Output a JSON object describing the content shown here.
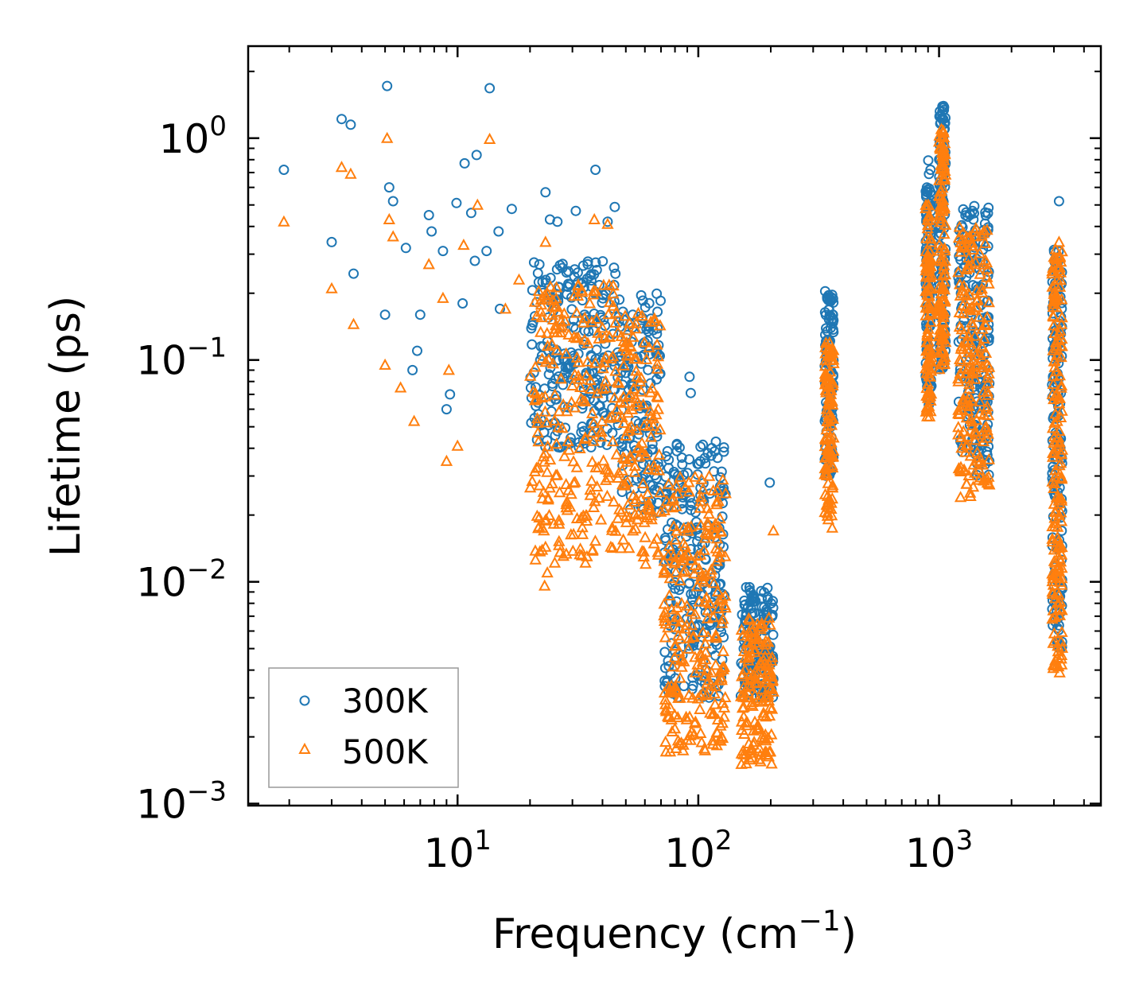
{
  "chart_data": {
    "type": "scatter",
    "title": "",
    "xlabel": "Frequency (cm",
    "xlabel_sup": "−1",
    "xlabel_close": ")",
    "ylabel": "Lifetime (ps)",
    "xscale": "log",
    "yscale": "log",
    "xlim": [
      1.35,
      4700
    ],
    "ylim": [
      0.00098,
      2.6
    ],
    "x_ticks": [
      {
        "value": 10,
        "base": "10",
        "exp": "1"
      },
      {
        "value": 100,
        "base": "10",
        "exp": "2"
      },
      {
        "value": 1000,
        "base": "10",
        "exp": "3"
      }
    ],
    "y_ticks": [
      {
        "value": 0.001,
        "base": "10",
        "exp": "−3"
      },
      {
        "value": 0.01,
        "base": "10",
        "exp": "−2"
      },
      {
        "value": 0.1,
        "base": "10",
        "exp": "−1"
      },
      {
        "value": 1,
        "base": "10",
        "exp": "0"
      }
    ],
    "legend_position": "bottom-left",
    "series": [
      {
        "name": "300K",
        "marker": "circle",
        "color": "#1f77b4"
      },
      {
        "name": "500K",
        "marker": "triangle",
        "color": "#ff7f0e"
      }
    ],
    "clusters": [
      {
        "x": [
          20,
          48
        ],
        "y300": [
          0.04,
          0.28
        ],
        "y500": [
          0.012,
          0.22
        ],
        "n": 260
      },
      {
        "x": [
          48,
          70
        ],
        "y300": [
          0.02,
          0.2
        ],
        "y500": [
          0.012,
          0.17
        ],
        "n": 130
      },
      {
        "x": [
          72,
          130
        ],
        "y300": [
          0.003,
          0.045
        ],
        "y500": [
          0.0017,
          0.03
        ],
        "n": 260
      },
      {
        "x": [
          150,
          205
        ],
        "y300": [
          0.003,
          0.0095
        ],
        "y500": [
          0.0015,
          0.007
        ],
        "n": 150
      },
      {
        "x": [
          335,
          365
        ],
        "y300": [
          0.03,
          0.21
        ],
        "y500": [
          0.019,
          0.12
        ],
        "n": 110
      },
      {
        "x": [
          880,
          930
        ],
        "y300": [
          0.06,
          0.8
        ],
        "y500": [
          0.055,
          0.5
        ],
        "n": 110
      },
      {
        "x": [
          1000,
          1065
        ],
        "y300": [
          0.09,
          1.4
        ],
        "y500": [
          0.09,
          1.1
        ],
        "n": 130
      },
      {
        "x": [
          1200,
          1620
        ],
        "y300": [
          0.03,
          0.5
        ],
        "y500": [
          0.024,
          0.4
        ],
        "n": 200
      },
      {
        "x": [
          2950,
          3250
        ],
        "y300": [
          0.005,
          0.32
        ],
        "y500": [
          0.004,
          0.33
        ],
        "n": 180
      }
    ],
    "points_300K": [
      [
        1.9,
        0.72
      ],
      [
        3.0,
        0.34
      ],
      [
        3.3,
        1.22
      ],
      [
        3.6,
        1.15
      ],
      [
        3.7,
        0.245
      ],
      [
        5.0,
        0.16
      ],
      [
        5.1,
        1.72
      ],
      [
        5.2,
        0.6
      ],
      [
        5.4,
        0.52
      ],
      [
        6.1,
        0.32
      ],
      [
        6.5,
        0.09
      ],
      [
        7.6,
        0.45
      ],
      [
        7.8,
        0.38
      ],
      [
        8.7,
        0.31
      ],
      [
        9.3,
        0.07
      ],
      [
        9.9,
        0.51
      ],
      [
        10.7,
        0.77
      ],
      [
        11.4,
        0.46
      ],
      [
        12.0,
        0.84
      ],
      [
        13.6,
        1.68
      ],
      [
        13.2,
        0.31
      ],
      [
        14.8,
        0.38
      ],
      [
        16.8,
        0.48
      ],
      [
        23.2,
        0.57
      ],
      [
        24.2,
        0.43
      ],
      [
        26.0,
        0.42
      ],
      [
        31.0,
        0.47
      ],
      [
        37.4,
        0.72
      ],
      [
        42.0,
        0.42
      ],
      [
        45.0,
        0.49
      ],
      [
        92.0,
        0.084
      ],
      [
        93.0,
        0.071
      ],
      [
        198.0,
        0.028
      ],
      [
        3150.0,
        0.52
      ],
      [
        9.0,
        0.06
      ],
      [
        10.5,
        0.18
      ],
      [
        11.8,
        0.28
      ],
      [
        7.0,
        0.16
      ],
      [
        6.8,
        0.11
      ],
      [
        15.0,
        0.17
      ]
    ],
    "points_500K": [
      [
        1.9,
        0.42
      ],
      [
        3.0,
        0.21
      ],
      [
        3.3,
        0.74
      ],
      [
        3.6,
        0.69
      ],
      [
        3.7,
        0.145
      ],
      [
        5.0,
        0.095
      ],
      [
        5.1,
        1.0
      ],
      [
        5.2,
        0.43
      ],
      [
        5.4,
        0.36
      ],
      [
        5.8,
        0.075
      ],
      [
        6.6,
        0.053
      ],
      [
        7.6,
        0.27
      ],
      [
        8.7,
        0.19
      ],
      [
        9.0,
        0.035
      ],
      [
        10.0,
        0.041
      ],
      [
        10.6,
        0.33
      ],
      [
        12.1,
        0.5
      ],
      [
        13.6,
        0.99
      ],
      [
        15.8,
        0.17
      ],
      [
        18.0,
        0.23
      ],
      [
        23.2,
        0.34
      ],
      [
        23.0,
        0.0096
      ],
      [
        23.6,
        0.011
      ],
      [
        37.0,
        0.43
      ],
      [
        42.0,
        0.41
      ],
      [
        205.0,
        0.017
      ],
      [
        3150.0,
        0.34
      ],
      [
        3170.0,
        0.0039
      ],
      [
        360.0,
        0.0175
      ],
      [
        9.2,
        0.09
      ]
    ]
  }
}
